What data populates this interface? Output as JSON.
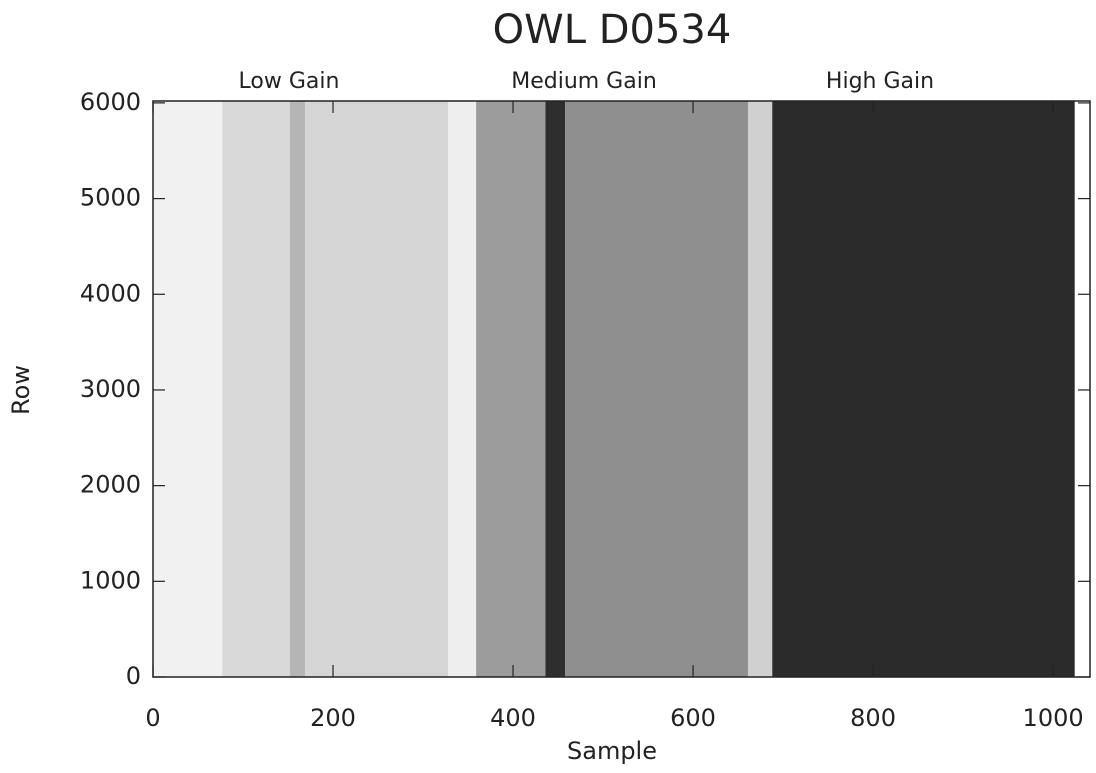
{
  "chart_data": {
    "type": "image",
    "title": "OWL D0534",
    "x_label": "Sample",
    "y_label": "Row",
    "annotations": [
      "Low Gain",
      "Medium Gain",
      "High Gain"
    ],
    "columns": [
      {
        "x": [
          0,
          77
        ],
        "color": "#f1f1f1"
      },
      {
        "x": [
          77,
          152
        ],
        "color": "#d9d9d9"
      },
      {
        "x": [
          152,
          169
        ],
        "color": "#b5b5b5"
      },
      {
        "x": [
          169,
          328
        ],
        "color": "#d5d5d5"
      },
      {
        "x": [
          328,
          359
        ],
        "color": "#eeeeee"
      },
      {
        "x": [
          359,
          436
        ],
        "color": "#9c9c9c"
      },
      {
        "x": [
          436,
          458
        ],
        "color": "#2e2e2e"
      },
      {
        "x": [
          458,
          661
        ],
        "color": "#8f8f8f"
      },
      {
        "x": [
          661,
          688
        ],
        "color": "#d0d0d0"
      },
      {
        "x": [
          688,
          1024
        ],
        "color": "#2b2b2b"
      }
    ],
    "xlim": [
      0,
      1041
    ],
    "ylim": [
      0,
      6020
    ],
    "xticks": [
      0,
      200,
      400,
      600,
      800,
      1000
    ],
    "yticks": [
      0,
      1000,
      2000,
      3000,
      4000,
      5000,
      6000
    ]
  }
}
